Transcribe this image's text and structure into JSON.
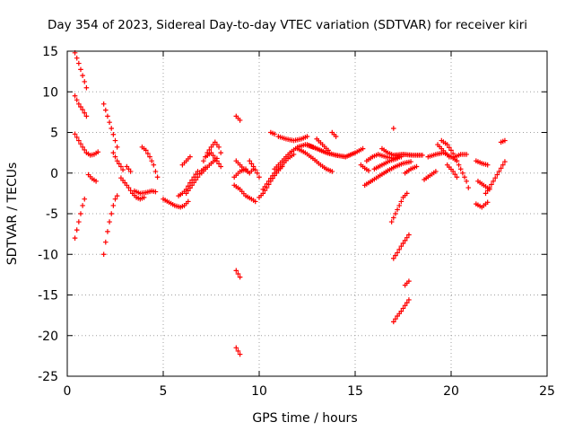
{
  "chart_data": {
    "type": "scatter",
    "title": "Day 354 of 2023, Sidereal Day-to-day VTEC variation (SDTVAR) for receiver kiri",
    "xlabel": "GPS time / hours",
    "ylabel": "SDTVAR / TECUs",
    "xlim": [
      0,
      25
    ],
    "ylim": [
      -25,
      15
    ],
    "xticks": [
      0,
      5,
      10,
      15,
      20,
      25
    ],
    "yticks": [
      -25,
      -20,
      -15,
      -10,
      -5,
      0,
      5,
      10,
      15
    ],
    "grid": true,
    "marker": "plus",
    "series_color": "#ff0000",
    "segments": [
      [
        [
          0.4,
          14.8
        ],
        [
          0.6,
          13.5
        ],
        [
          0.8,
          12.0
        ],
        [
          1.0,
          10.5
        ]
      ],
      [
        [
          0.4,
          9.5
        ],
        [
          0.6,
          8.5
        ],
        [
          0.8,
          7.8
        ],
        [
          1.0,
          7.0
        ]
      ],
      [
        [
          0.4,
          4.8
        ],
        [
          0.6,
          4.0
        ],
        [
          0.8,
          3.2
        ],
        [
          1.0,
          2.5
        ],
        [
          1.2,
          2.2
        ],
        [
          1.4,
          2.3
        ],
        [
          1.6,
          2.6
        ]
      ],
      [
        [
          1.1,
          -0.2
        ],
        [
          1.3,
          -0.7
        ],
        [
          1.5,
          -1.0
        ]
      ],
      [
        [
          0.4,
          -8.0
        ],
        [
          0.5,
          -7.0
        ],
        [
          0.6,
          -6.0
        ],
        [
          0.7,
          -5.0
        ],
        [
          0.8,
          -4.0
        ],
        [
          0.9,
          -3.2
        ]
      ],
      [
        [
          1.9,
          8.5
        ],
        [
          2.1,
          7.0
        ],
        [
          2.3,
          5.5
        ],
        [
          2.5,
          4.0
        ],
        [
          2.6,
          3.2
        ]
      ],
      [
        [
          1.9,
          -10.0
        ],
        [
          2.0,
          -8.5
        ],
        [
          2.1,
          -7.2
        ],
        [
          2.2,
          -6.0
        ],
        [
          2.3,
          -5.0
        ],
        [
          2.4,
          -4.0
        ],
        [
          2.5,
          -3.2
        ],
        [
          2.6,
          -2.8
        ]
      ],
      [
        [
          2.4,
          2.5
        ],
        [
          2.6,
          1.5
        ],
        [
          2.8,
          0.8
        ],
        [
          2.9,
          0.4
        ]
      ],
      [
        [
          2.8,
          -0.6
        ],
        [
          3.0,
          -1.2
        ],
        [
          3.2,
          -1.8
        ],
        [
          3.4,
          -2.5
        ],
        [
          3.6,
          -3.0
        ],
        [
          3.8,
          -3.2
        ],
        [
          4.0,
          -3.0
        ]
      ],
      [
        [
          3.1,
          0.8
        ],
        [
          3.2,
          0.5
        ],
        [
          3.3,
          0.2
        ]
      ],
      [
        [
          3.5,
          -2.2
        ],
        [
          3.8,
          -2.5
        ],
        [
          4.1,
          -2.4
        ],
        [
          4.4,
          -2.2
        ],
        [
          4.6,
          -2.3
        ]
      ],
      [
        [
          3.9,
          3.2
        ],
        [
          4.1,
          2.8
        ],
        [
          4.3,
          2.0
        ],
        [
          4.5,
          1.0
        ],
        [
          4.6,
          0.2
        ],
        [
          4.7,
          -0.5
        ]
      ],
      [
        [
          5.0,
          -3.2
        ],
        [
          5.3,
          -3.6
        ],
        [
          5.6,
          -4.0
        ],
        [
          5.9,
          -4.2
        ],
        [
          6.1,
          -4.0
        ],
        [
          6.3,
          -3.5
        ]
      ],
      [
        [
          5.8,
          -2.8
        ],
        [
          6.0,
          -2.5
        ],
        [
          6.2,
          -2.0
        ],
        [
          6.4,
          -1.2
        ],
        [
          6.6,
          -0.5
        ],
        [
          6.8,
          0.2
        ]
      ],
      [
        [
          6.2,
          -2.5
        ],
        [
          6.5,
          -1.5
        ],
        [
          6.8,
          -0.5
        ],
        [
          7.0,
          0.3
        ],
        [
          7.2,
          0.7
        ]
      ],
      [
        [
          6.0,
          1.0
        ],
        [
          6.2,
          1.5
        ],
        [
          6.4,
          2.0
        ]
      ],
      [
        [
          7.1,
          1.5
        ],
        [
          7.3,
          2.5
        ],
        [
          7.5,
          3.2
        ],
        [
          7.7,
          3.8
        ],
        [
          7.9,
          3.2
        ],
        [
          8.0,
          2.5
        ]
      ],
      [
        [
          7.2,
          2.0
        ],
        [
          7.5,
          2.5
        ],
        [
          7.8,
          1.5
        ],
        [
          8.0,
          0.8
        ]
      ],
      [
        [
          7.0,
          0.0
        ],
        [
          7.2,
          0.5
        ],
        [
          7.5,
          1.2
        ],
        [
          7.8,
          1.8
        ]
      ],
      [
        [
          8.8,
          1.5
        ],
        [
          9.0,
          1.0
        ],
        [
          9.2,
          0.5
        ],
        [
          9.5,
          0.0
        ],
        [
          9.7,
          0.5
        ]
      ],
      [
        [
          8.7,
          -1.5
        ],
        [
          9.0,
          -2.0
        ],
        [
          9.3,
          -2.8
        ],
        [
          9.6,
          -3.2
        ],
        [
          9.8,
          -3.5
        ]
      ],
      [
        [
          8.8,
          7.0
        ],
        [
          9.0,
          6.5
        ]
      ],
      [
        [
          8.8,
          -12.0
        ],
        [
          9.0,
          -12.8
        ]
      ],
      [
        [
          8.8,
          -21.5
        ],
        [
          9.0,
          -22.3
        ]
      ],
      [
        [
          8.7,
          -0.5
        ],
        [
          9.0,
          0.2
        ],
        [
          9.3,
          0.5
        ]
      ],
      [
        [
          9.5,
          1.5
        ],
        [
          9.7,
          0.8
        ],
        [
          9.9,
          0.0
        ],
        [
          10.0,
          -0.5
        ]
      ],
      [
        [
          10.0,
          -3.0
        ],
        [
          10.2,
          -2.5
        ],
        [
          10.4,
          -1.8
        ],
        [
          10.6,
          -1.0
        ],
        [
          10.8,
          -0.3
        ],
        [
          11.0,
          0.3
        ],
        [
          11.2,
          0.8
        ]
      ],
      [
        [
          10.2,
          -2.0
        ],
        [
          10.5,
          -1.0
        ],
        [
          10.8,
          0.0
        ],
        [
          11.2,
          1.0
        ],
        [
          11.5,
          1.8
        ],
        [
          11.8,
          2.3
        ]
      ],
      [
        [
          10.8,
          0.5
        ],
        [
          11.2,
          1.5
        ],
        [
          11.6,
          2.5
        ],
        [
          12.0,
          3.2
        ],
        [
          12.4,
          3.5
        ],
        [
          12.8,
          3.2
        ]
      ],
      [
        [
          11.0,
          4.5
        ],
        [
          11.4,
          4.2
        ],
        [
          11.8,
          4.0
        ],
        [
          12.2,
          4.2
        ],
        [
          12.5,
          4.5
        ]
      ],
      [
        [
          10.6,
          5.0
        ],
        [
          10.8,
          4.8
        ]
      ],
      [
        [
          12.5,
          3.5
        ],
        [
          13.0,
          3.0
        ],
        [
          13.5,
          2.5
        ],
        [
          14.0,
          2.2
        ],
        [
          14.5,
          2.0
        ],
        [
          15.0,
          2.5
        ],
        [
          15.4,
          3.0
        ]
      ],
      [
        [
          12.0,
          3.0
        ],
        [
          12.4,
          2.5
        ],
        [
          12.8,
          1.8
        ],
        [
          13.2,
          1.0
        ],
        [
          13.5,
          0.5
        ],
        [
          13.8,
          0.2
        ]
      ],
      [
        [
          13.0,
          4.2
        ],
        [
          13.3,
          3.5
        ],
        [
          13.6,
          2.8
        ]
      ],
      [
        [
          13.8,
          5.0
        ],
        [
          14.0,
          4.5
        ]
      ],
      [
        [
          15.3,
          1.0
        ],
        [
          15.5,
          0.6
        ],
        [
          15.7,
          0.3
        ]
      ],
      [
        [
          15.5,
          -1.5
        ],
        [
          15.9,
          -0.9
        ],
        [
          16.3,
          -0.3
        ],
        [
          16.7,
          0.3
        ],
        [
          17.1,
          0.8
        ],
        [
          17.5,
          1.2
        ],
        [
          17.9,
          1.4
        ]
      ],
      [
        [
          15.6,
          1.5
        ],
        [
          15.9,
          2.0
        ],
        [
          16.2,
          2.3
        ],
        [
          16.6,
          2.0
        ],
        [
          17.0,
          1.8
        ],
        [
          17.4,
          2.0
        ]
      ],
      [
        [
          16.0,
          0.5
        ],
        [
          16.4,
          1.0
        ],
        [
          16.8,
          1.5
        ],
        [
          17.2,
          1.8
        ]
      ],
      [
        [
          16.4,
          3.0
        ],
        [
          16.7,
          2.5
        ],
        [
          17.0,
          2.2
        ],
        [
          17.5,
          2.3
        ],
        [
          18.0,
          2.2
        ],
        [
          18.5,
          2.2
        ]
      ],
      [
        [
          17.0,
          5.5
        ]
      ],
      [
        [
          16.9,
          -6.0
        ],
        [
          17.1,
          -5.0
        ],
        [
          17.3,
          -4.0
        ],
        [
          17.5,
          -3.0
        ],
        [
          17.7,
          -2.5
        ]
      ],
      [
        [
          17.0,
          -10.5
        ],
        [
          17.2,
          -9.8
        ],
        [
          17.4,
          -9.0
        ],
        [
          17.6,
          -8.3
        ],
        [
          17.8,
          -7.6
        ]
      ],
      [
        [
          17.0,
          -18.3
        ],
        [
          17.2,
          -17.6
        ],
        [
          17.4,
          -17.0
        ],
        [
          17.6,
          -16.3
        ],
        [
          17.8,
          -15.6
        ]
      ],
      [
        [
          17.6,
          -13.8
        ],
        [
          17.8,
          -13.3
        ]
      ],
      [
        [
          17.6,
          0.0
        ],
        [
          17.9,
          0.5
        ],
        [
          18.2,
          0.8
        ]
      ],
      [
        [
          18.6,
          -0.8
        ],
        [
          18.9,
          -0.3
        ],
        [
          19.2,
          0.2
        ]
      ],
      [
        [
          18.8,
          2.0
        ],
        [
          19.2,
          2.3
        ],
        [
          19.6,
          2.5
        ],
        [
          20.0,
          2.0
        ],
        [
          20.3,
          1.5
        ]
      ],
      [
        [
          19.3,
          3.5
        ],
        [
          19.5,
          3.0
        ],
        [
          19.7,
          2.5
        ],
        [
          19.9,
          2.0
        ]
      ],
      [
        [
          19.5,
          4.0
        ],
        [
          19.8,
          3.5
        ],
        [
          20.0,
          2.8
        ],
        [
          20.2,
          2.0
        ],
        [
          20.4,
          1.0
        ],
        [
          20.6,
          0.0
        ],
        [
          20.8,
          -1.0
        ],
        [
          20.9,
          -1.8
        ]
      ],
      [
        [
          19.8,
          1.0
        ],
        [
          20.1,
          0.2
        ],
        [
          20.3,
          -0.5
        ]
      ],
      [
        [
          20.2,
          2.0
        ],
        [
          20.5,
          2.3
        ],
        [
          20.8,
          2.3
        ]
      ],
      [
        [
          21.3,
          1.5
        ],
        [
          21.6,
          1.2
        ],
        [
          21.9,
          1.0
        ]
      ],
      [
        [
          21.3,
          -3.8
        ],
        [
          21.6,
          -4.2
        ],
        [
          21.9,
          -3.6
        ]
      ],
      [
        [
          21.4,
          -1.0
        ],
        [
          21.7,
          -1.5
        ],
        [
          22.0,
          -2.0
        ]
      ],
      [
        [
          21.8,
          -2.5
        ],
        [
          22.0,
          -1.8
        ],
        [
          22.2,
          -1.0
        ],
        [
          22.4,
          -0.2
        ],
        [
          22.6,
          0.6
        ],
        [
          22.8,
          1.4
        ]
      ],
      [
        [
          22.6,
          3.8
        ],
        [
          22.8,
          4.0
        ]
      ]
    ]
  }
}
